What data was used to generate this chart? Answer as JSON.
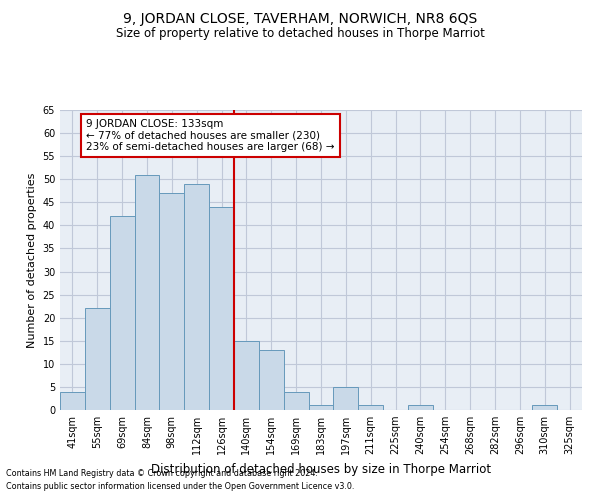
{
  "title": "9, JORDAN CLOSE, TAVERHAM, NORWICH, NR8 6QS",
  "subtitle": "Size of property relative to detached houses in Thorpe Marriot",
  "xlabel": "Distribution of detached houses by size in Thorpe Marriot",
  "ylabel": "Number of detached properties",
  "footnote1": "Contains HM Land Registry data © Crown copyright and database right 2024.",
  "footnote2": "Contains public sector information licensed under the Open Government Licence v3.0.",
  "bin_labels": [
    "41sqm",
    "55sqm",
    "69sqm",
    "84sqm",
    "98sqm",
    "112sqm",
    "126sqm",
    "140sqm",
    "154sqm",
    "169sqm",
    "183sqm",
    "197sqm",
    "211sqm",
    "225sqm",
    "240sqm",
    "254sqm",
    "268sqm",
    "282sqm",
    "296sqm",
    "310sqm",
    "325sqm"
  ],
  "bar_values": [
    4,
    22,
    42,
    51,
    47,
    49,
    44,
    15,
    13,
    4,
    1,
    5,
    1,
    0,
    1,
    0,
    0,
    0,
    0,
    1,
    0
  ],
  "bar_color": "#c9d9e8",
  "bar_edge_color": "#6699bb",
  "grid_color": "#c0c8d8",
  "bg_color": "#e8eef5",
  "annotation_text": "9 JORDAN CLOSE: 133sqm\n← 77% of detached houses are smaller (230)\n23% of semi-detached houses are larger (68) →",
  "annotation_box_color": "#ffffff",
  "annotation_box_edge": "#cc0000",
  "vline_color": "#cc0000",
  "vline_pos": 6.5,
  "ylim": [
    0,
    65
  ],
  "yticks": [
    0,
    5,
    10,
    15,
    20,
    25,
    30,
    35,
    40,
    45,
    50,
    55,
    60,
    65
  ],
  "title_fontsize": 10,
  "subtitle_fontsize": 8.5,
  "xlabel_fontsize": 8.5,
  "ylabel_fontsize": 8,
  "tick_fontsize": 7,
  "annotation_fontsize": 7.5,
  "footnote_fontsize": 5.8
}
